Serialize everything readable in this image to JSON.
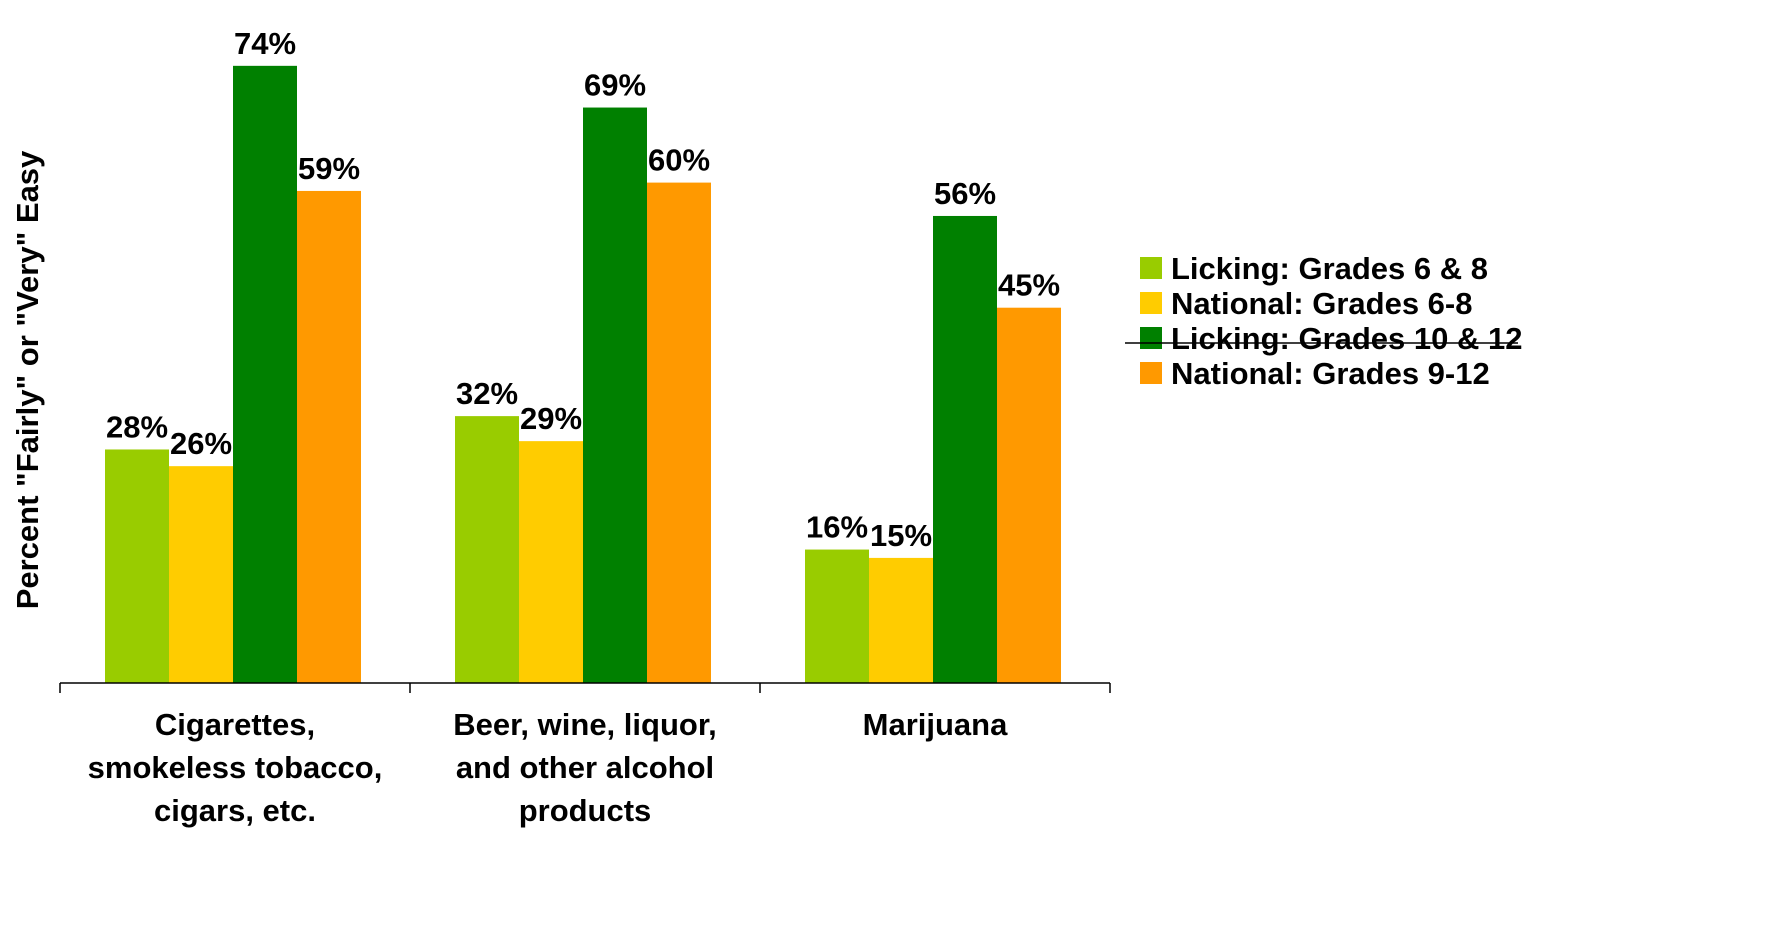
{
  "chart_data": {
    "type": "bar",
    "title": "",
    "xlabel": "",
    "ylabel": "Percent \"Fairly\" or \"Very\" Easy",
    "ylim": [
      0,
      80
    ],
    "grid": false,
    "legend_position": "right",
    "categories": [
      [
        "Cigarettes,",
        "smokeless tobacco,",
        "cigars, etc."
      ],
      [
        "Beer, wine, liquor,",
        "and other alcohol",
        "products"
      ],
      [
        "Marijuana"
      ]
    ],
    "series": [
      {
        "name": "Licking: Grades 6 & 8",
        "color": "#99CC00",
        "values": [
          28,
          32,
          16
        ],
        "labels": [
          "28%",
          "32%",
          "16%"
        ]
      },
      {
        "name": "National: Grades 6-8",
        "color": "#FFCC00",
        "values": [
          26,
          29,
          15
        ],
        "labels": [
          "26%",
          "29%",
          "15%"
        ]
      },
      {
        "name": "Licking: Grades 10 & 12",
        "color": "#008000",
        "values": [
          74,
          69,
          56
        ],
        "labels": [
          "74%",
          "69%",
          "56%"
        ]
      },
      {
        "name": "National: Grades 9-12",
        "color": "#FF9900",
        "values": [
          59,
          60,
          45
        ],
        "labels": [
          "59%",
          "60%",
          "45%"
        ]
      }
    ]
  }
}
